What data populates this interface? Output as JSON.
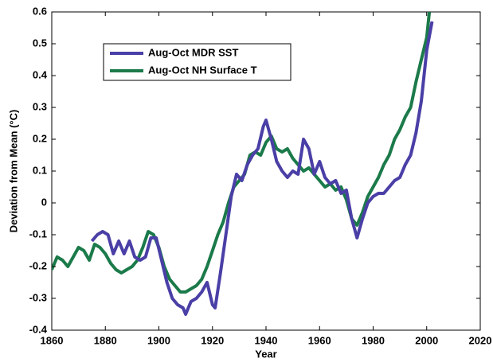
{
  "chart_data": {
    "type": "line",
    "xlabel": "Year",
    "ylabel": "Deviation from Mean (°C)",
    "xlim": [
      1860,
      2020
    ],
    "xticks": [
      1860,
      1880,
      1900,
      1920,
      1940,
      1960,
      1980,
      2000,
      2020
    ],
    "ylim": [
      -0.4,
      0.6
    ],
    "yticks": [
      -0.4,
      -0.3,
      -0.2,
      -0.1,
      0,
      0.1,
      0.2,
      0.3,
      0.4,
      0.5,
      0.6
    ],
    "legend": "upper left",
    "series": [
      {
        "name": "Aug-Oct MDR SST",
        "color": "#4a3fa6",
        "x": [
          1875,
          1877,
          1879,
          1881,
          1883,
          1885,
          1887,
          1889,
          1891,
          1893,
          1895,
          1897,
          1899,
          1901,
          1903,
          1905,
          1907,
          1909,
          1910,
          1912,
          1914,
          1916,
          1918,
          1920,
          1921,
          1923,
          1925,
          1927,
          1929,
          1931,
          1933,
          1935,
          1937,
          1939,
          1940,
          1942,
          1944,
          1946,
          1948,
          1950,
          1952,
          1954,
          1956,
          1958,
          1960,
          1962,
          1964,
          1966,
          1968,
          1970,
          1972,
          1974,
          1976,
          1978,
          1980,
          1982,
          1984,
          1986,
          1988,
          1990,
          1992,
          1994,
          1996,
          1998,
          2000,
          2002
        ],
        "values": [
          -0.12,
          -0.1,
          -0.09,
          -0.1,
          -0.16,
          -0.12,
          -0.16,
          -0.12,
          -0.17,
          -0.18,
          -0.17,
          -0.11,
          -0.11,
          -0.18,
          -0.25,
          -0.3,
          -0.32,
          -0.33,
          -0.35,
          -0.31,
          -0.3,
          -0.28,
          -0.25,
          -0.32,
          -0.33,
          -0.22,
          -0.1,
          0.02,
          0.09,
          0.07,
          0.12,
          0.15,
          0.17,
          0.24,
          0.26,
          0.2,
          0.13,
          0.1,
          0.08,
          0.1,
          0.09,
          0.2,
          0.17,
          0.09,
          0.13,
          0.08,
          0.06,
          0.07,
          0.03,
          0.04,
          -0.05,
          -0.11,
          -0.05,
          0.0,
          0.02,
          0.03,
          0.03,
          0.05,
          0.07,
          0.08,
          0.12,
          0.15,
          0.22,
          0.32,
          0.48,
          0.57
        ]
      },
      {
        "name": "Aug-Oct NH Surface T",
        "color": "#1b7a4a",
        "x": [
          1860,
          1862,
          1864,
          1866,
          1868,
          1870,
          1872,
          1874,
          1876,
          1878,
          1880,
          1882,
          1884,
          1886,
          1888,
          1890,
          1892,
          1894,
          1896,
          1898,
          1900,
          1902,
          1904,
          1906,
          1908,
          1910,
          1912,
          1914,
          1916,
          1918,
          1920,
          1922,
          1924,
          1926,
          1928,
          1930,
          1932,
          1934,
          1936,
          1938,
          1940,
          1942,
          1944,
          1946,
          1948,
          1950,
          1952,
          1954,
          1956,
          1958,
          1960,
          1962,
          1964,
          1966,
          1968,
          1970,
          1972,
          1974,
          1976,
          1978,
          1980,
          1982,
          1984,
          1986,
          1988,
          1990,
          1992,
          1994,
          1996,
          1998,
          2000,
          2001
        ],
        "values": [
          -0.21,
          -0.17,
          -0.18,
          -0.2,
          -0.17,
          -0.14,
          -0.15,
          -0.18,
          -0.13,
          -0.14,
          -0.16,
          -0.19,
          -0.21,
          -0.22,
          -0.21,
          -0.2,
          -0.18,
          -0.14,
          -0.09,
          -0.1,
          -0.14,
          -0.2,
          -0.24,
          -0.26,
          -0.28,
          -0.28,
          -0.27,
          -0.26,
          -0.24,
          -0.2,
          -0.15,
          -0.1,
          -0.06,
          0.0,
          0.05,
          0.07,
          0.09,
          0.15,
          0.16,
          0.15,
          0.19,
          0.21,
          0.17,
          0.16,
          0.17,
          0.14,
          0.12,
          0.1,
          0.11,
          0.09,
          0.07,
          0.05,
          0.06,
          0.04,
          0.05,
          0.01,
          -0.05,
          -0.07,
          -0.03,
          0.02,
          0.05,
          0.08,
          0.12,
          0.15,
          0.2,
          0.23,
          0.27,
          0.3,
          0.38,
          0.45,
          0.52,
          0.6
        ]
      }
    ]
  }
}
